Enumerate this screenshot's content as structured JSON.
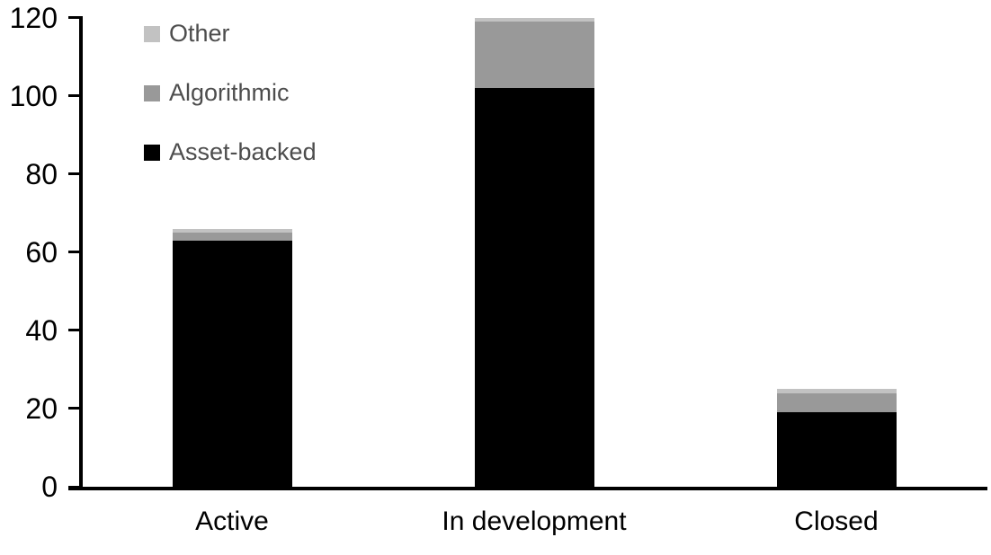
{
  "chart_data": {
    "type": "bar",
    "stacked": true,
    "title": "",
    "xlabel": "",
    "ylabel": "",
    "categories": [
      "Active",
      "In development",
      "Closed"
    ],
    "series": [
      {
        "name": "Asset-backed",
        "color": "#000000",
        "values": [
          63,
          102,
          19
        ]
      },
      {
        "name": "Algorithmic",
        "color": "#999999",
        "values": [
          2,
          17,
          5
        ]
      },
      {
        "name": "Other",
        "color": "#c2c2c2",
        "values": [
          1,
          1,
          1
        ]
      }
    ],
    "totals": [
      66,
      120,
      25
    ],
    "ylim": [
      0,
      120
    ],
    "yticks": [
      0,
      20,
      40,
      60,
      80,
      100,
      120
    ],
    "grid": false,
    "legend_position": "top-left-inside",
    "legend_order": [
      "Other",
      "Algorithmic",
      "Asset-backed"
    ],
    "axis_color": "#000000",
    "tick_label_color": "#000000",
    "category_label_color": "#000000",
    "legend_text_color": "#4d4d4d",
    "background_color": "#ffffff"
  }
}
